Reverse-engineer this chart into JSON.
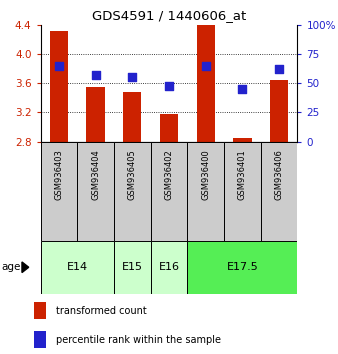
{
  "title": "GDS4591 / 1440606_at",
  "samples": [
    "GSM936403",
    "GSM936404",
    "GSM936405",
    "GSM936402",
    "GSM936400",
    "GSM936401",
    "GSM936406"
  ],
  "transformed_count": [
    4.31,
    3.55,
    3.48,
    3.18,
    4.47,
    2.85,
    3.65
  ],
  "percentile_rank": [
    65,
    57,
    55,
    48,
    65,
    45,
    62
  ],
  "age_groups": [
    {
      "label": "E14",
      "samples": [
        0,
        1
      ],
      "color": "#ccffcc"
    },
    {
      "label": "E15",
      "samples": [
        2
      ],
      "color": "#ccffcc"
    },
    {
      "label": "E16",
      "samples": [
        3
      ],
      "color": "#ccffcc"
    },
    {
      "label": "E17.5",
      "samples": [
        4,
        5,
        6
      ],
      "color": "#55ee55"
    }
  ],
  "ylim_left": [
    2.8,
    4.4
  ],
  "ylim_right": [
    0,
    100
  ],
  "yticks_left": [
    2.8,
    3.2,
    3.6,
    4.0,
    4.4
  ],
  "yticks_right": [
    0,
    25,
    50,
    75,
    100
  ],
  "ytick_labels_right": [
    "0",
    "25",
    "50",
    "75",
    "100%"
  ],
  "bar_color": "#cc2200",
  "dot_color": "#2222cc",
  "grid_color": "#000000",
  "bar_width": 0.5,
  "dot_size": 28,
  "left_tick_color": "#cc2200",
  "right_tick_color": "#2222cc",
  "age_label": "age",
  "legend_bar_label": "transformed count",
  "legend_dot_label": "percentile rank within the sample",
  "sample_box_color": "#cccccc",
  "fig_width": 3.38,
  "fig_height": 3.54,
  "fig_dpi": 100
}
